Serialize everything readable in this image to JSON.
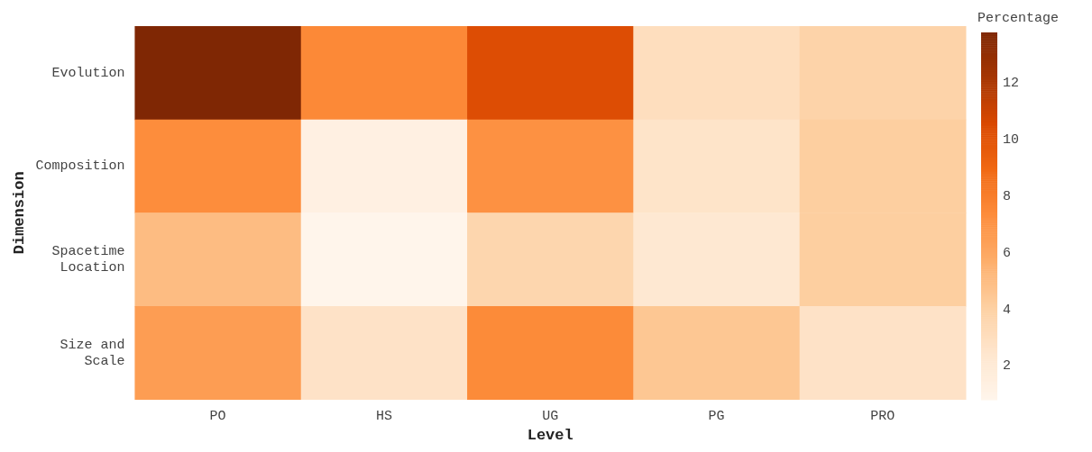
{
  "chart_data": {
    "type": "heatmap",
    "xlabel": "Level",
    "ylabel": "Dimension",
    "clabel": "Percentage",
    "categories": [
      "PO",
      "HS",
      "UG",
      "PG",
      "PRO"
    ],
    "y_categories": [
      "Evolution",
      "Composition",
      "Spacetime Location",
      "Size and Scale"
    ],
    "cells": [
      [
        13.8,
        7.5,
        10.3,
        3.0,
        3.8
      ],
      [
        7.3,
        1.3,
        7.1,
        2.6,
        4.1
      ],
      [
        5.0,
        0.8,
        3.6,
        2.2,
        4.1
      ],
      [
        6.5,
        2.7,
        7.4,
        4.5,
        2.7
      ]
    ],
    "clim": [
      0.8,
      13.8
    ],
    "cticks": [
      2,
      4,
      6,
      8,
      10,
      12
    ]
  }
}
